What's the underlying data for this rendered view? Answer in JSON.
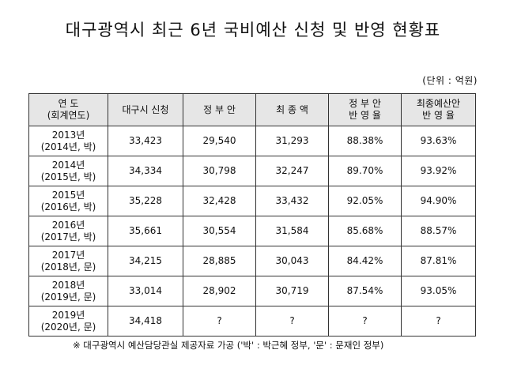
{
  "title": "대구광역시 최근 6년 국비예산 신청 및 반영 현황표",
  "unit": "(단위 : 억원)",
  "table": {
    "headers": [
      {
        "line1": "연    도",
        "line2": "(회계연도)"
      },
      {
        "line1": "대구시 신청",
        "line2": ""
      },
      {
        "line1": "정  부  안",
        "line2": ""
      },
      {
        "line1": "최 종 액",
        "line2": ""
      },
      {
        "line1": "정  부  안",
        "line2": "반 영 율"
      },
      {
        "line1": "최종예산안",
        "line2": "반  영  율"
      }
    ],
    "rows": [
      {
        "year": "2013년",
        "fiscal": "(2014년, 박)",
        "request": "33,423",
        "gov": "29,540",
        "final": "31,293",
        "gov_rate": "88.38%",
        "final_rate": "93.63%"
      },
      {
        "year": "2014년",
        "fiscal": "(2015년, 박)",
        "request": "34,334",
        "gov": "30,798",
        "final": "32,247",
        "gov_rate": "89.70%",
        "final_rate": "93.92%"
      },
      {
        "year": "2015년",
        "fiscal": "(2016년, 박)",
        "request": "35,228",
        "gov": "32,428",
        "final": "33,432",
        "gov_rate": "92.05%",
        "final_rate": "94.90%"
      },
      {
        "year": "2016년",
        "fiscal": "(2017년, 박)",
        "request": "35,661",
        "gov": "30,554",
        "final": "31,584",
        "gov_rate": "85.68%",
        "final_rate": "88.57%"
      },
      {
        "year": "2017년",
        "fiscal": "(2018년, 문)",
        "request": "34,215",
        "gov": "28,885",
        "final": "30,043",
        "gov_rate": "84.42%",
        "final_rate": "87.81%"
      },
      {
        "year": "2018년",
        "fiscal": "(2019년, 문)",
        "request": "33,014",
        "gov": "28,902",
        "final": "30,719",
        "gov_rate": "87.54%",
        "final_rate": "93.05%"
      },
      {
        "year": "2019년",
        "fiscal": "(2020년, 문)",
        "request": "34,418",
        "gov": "?",
        "final": "?",
        "gov_rate": "?",
        "final_rate": "?"
      }
    ]
  },
  "footnote": "※ 대구광역시 예산담당관실 제공자료 가공 ('박' : 박근혜 정부, '문' : 문재인 정부)"
}
